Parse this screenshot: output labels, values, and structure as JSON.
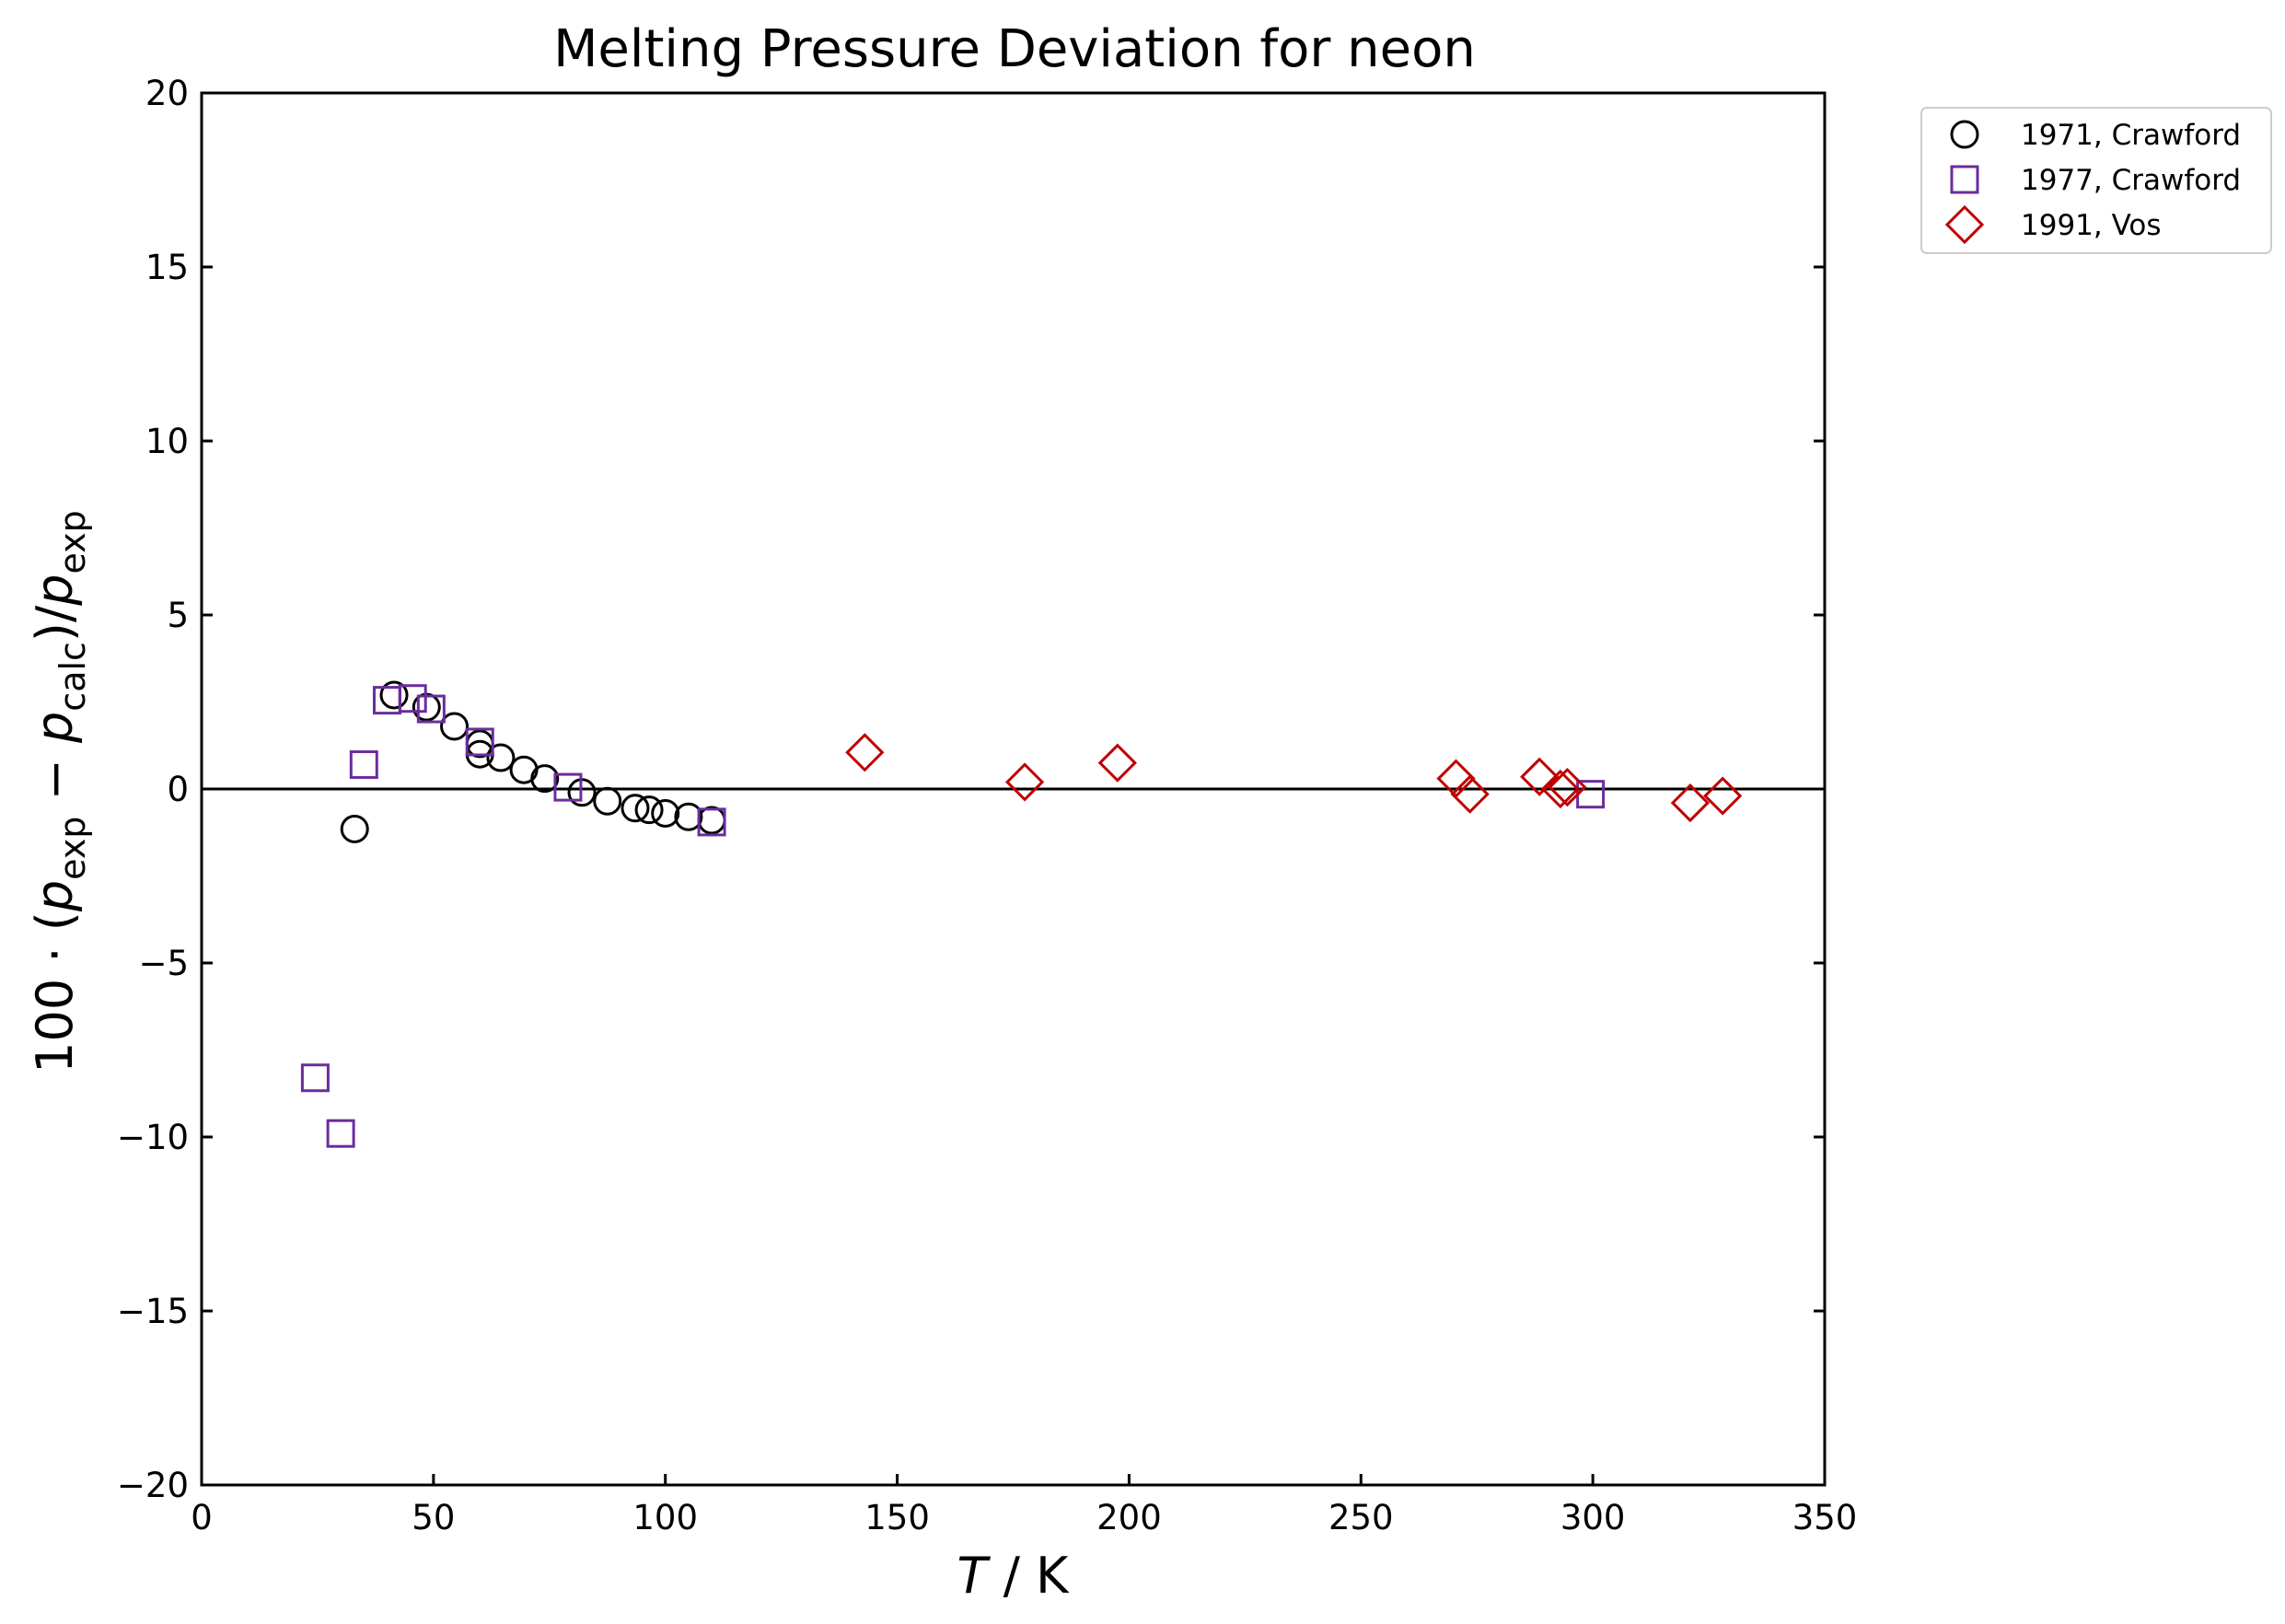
{
  "chart_data": {
    "type": "scatter",
    "title": "Melting Pressure Deviation for neon",
    "xlabel": "T / K",
    "ylabel": "100 · (p_exp − p_calc)/p_exp",
    "xlim": [
      0,
      350
    ],
    "ylim": [
      -20,
      20
    ],
    "xticks": [
      0,
      50,
      100,
      150,
      200,
      250,
      300,
      350
    ],
    "yticks": [
      -20,
      -15,
      -10,
      -5,
      0,
      5,
      10,
      15,
      20
    ],
    "grid": false,
    "legend": "outside top-right",
    "reference_line_y": 0,
    "series": [
      {
        "name": "1971, Crawford",
        "marker": "circle",
        "color": "#000000",
        "x": [
          33,
          41.5,
          48.5,
          54.5,
          60,
          60,
          64.5,
          69.5,
          74,
          82,
          87.5,
          93.5,
          96.5,
          100,
          105,
          110
        ],
        "y": [
          -1.15,
          2.7,
          2.35,
          1.8,
          1.3,
          1.0,
          0.9,
          0.55,
          0.3,
          -0.1,
          -0.35,
          -0.55,
          -0.6,
          -0.7,
          -0.8,
          -0.9
        ]
      },
      {
        "name": "1977, Crawford",
        "marker": "square",
        "color": "#6a2c9e",
        "x": [
          24.5,
          30,
          35,
          40,
          45.5,
          49.5,
          60,
          79,
          110,
          299.5
        ],
        "y": [
          -8.3,
          -9.9,
          0.7,
          2.55,
          2.6,
          2.3,
          1.35,
          0.05,
          -0.95,
          -0.15
        ]
      },
      {
        "name": "1991, Vos",
        "marker": "diamond",
        "color": "#c00000",
        "x": [
          143,
          177.5,
          197.5,
          270.5,
          273.5,
          288.5,
          293,
          294.5,
          321,
          328
        ],
        "y": [
          1.05,
          0.2,
          0.75,
          0.3,
          -0.15,
          0.35,
          0.0,
          0.05,
          -0.4,
          -0.2
        ]
      }
    ]
  }
}
